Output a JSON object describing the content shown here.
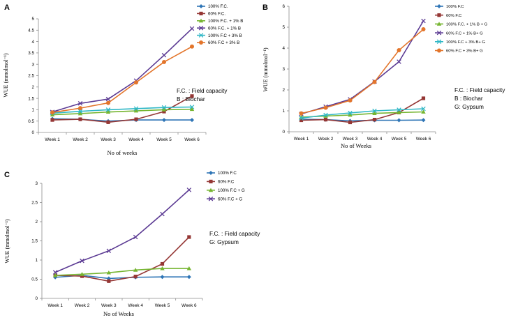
{
  "chart_data": [
    {
      "type": "line",
      "panel_label": "A",
      "categories": [
        "Week 1",
        "Week 2",
        "Week 3",
        "Week 4",
        "Week 5",
        "Week 6"
      ],
      "xlabel": "No of weeks",
      "ylabel": "WUE (mmolmol⁻¹)",
      "ylim": [
        0,
        5
      ],
      "yticks": [
        "0",
        "0.5",
        "1",
        "1.5",
        "2",
        "2.5",
        "3",
        "3.5",
        "4",
        "4.5",
        "5"
      ],
      "legend_position": "top-right",
      "note": [
        "F.C. : Field capacity",
        "B : Biochar"
      ],
      "series": [
        {
          "name": "100% F.C.",
          "color": "#2e75b6",
          "marker": "diamond",
          "values": [
            0.6,
            0.58,
            0.5,
            0.55,
            0.55,
            0.55
          ]
        },
        {
          "name": "60% F.C.",
          "color": "#953735",
          "marker": "square",
          "values": [
            0.55,
            0.58,
            0.45,
            0.58,
            0.92,
            1.6
          ]
        },
        {
          "name": "100% F.C. + 1% B",
          "color": "#76b531",
          "marker": "triangle",
          "values": [
            0.78,
            0.83,
            0.9,
            0.95,
            1.0,
            1.02
          ]
        },
        {
          "name": "60% F.C. + 1% B",
          "color": "#5b3a93",
          "marker": "cross",
          "values": [
            0.9,
            1.28,
            1.47,
            2.28,
            3.4,
            4.57
          ]
        },
        {
          "name": "100% F.C + 3% B",
          "color": "#2fb7c6",
          "marker": "cross",
          "values": [
            0.85,
            0.93,
            1.0,
            1.05,
            1.1,
            1.12
          ]
        },
        {
          "name": "60% F.C + 3% B",
          "color": "#e3752b",
          "marker": "circle",
          "values": [
            0.88,
            1.07,
            1.3,
            2.2,
            3.1,
            3.78
          ]
        }
      ]
    },
    {
      "type": "line",
      "panel_label": "B",
      "categories": [
        "Week 1",
        "Week 2",
        "Week 3",
        "Week 4",
        "Week 5",
        "Week 6"
      ],
      "xlabel": "No of Weeks",
      "ylabel": "WUE (mmolmol⁻¹)",
      "ylim": [
        0,
        6
      ],
      "yticks": [
        "0",
        "1",
        "2",
        "3",
        "4",
        "5",
        "6"
      ],
      "legend_position": "top-right",
      "note": [
        "F.C. : Field capacity",
        "B : Biochar",
        "G: Gypsum"
      ],
      "series": [
        {
          "name": "100% F.C",
          "color": "#2e75b6",
          "marker": "diamond",
          "values": [
            0.6,
            0.58,
            0.52,
            0.55,
            0.55,
            0.56
          ]
        },
        {
          "name": "60% F.C",
          "color": "#953735",
          "marker": "square",
          "values": [
            0.55,
            0.58,
            0.45,
            0.58,
            0.92,
            1.6
          ]
        },
        {
          "name": "100% F.C. + 1% B + G",
          "color": "#76b531",
          "marker": "triangle",
          "values": [
            0.7,
            0.75,
            0.8,
            0.88,
            0.92,
            0.95
          ]
        },
        {
          "name": "60% F.C + 1% B+ G",
          "color": "#5b3a93",
          "marker": "cross",
          "values": [
            0.85,
            1.2,
            1.55,
            2.4,
            3.35,
            5.3
          ]
        },
        {
          "name": "100% F.C + 3% B+ G",
          "color": "#2fb7c6",
          "marker": "cross",
          "values": [
            0.65,
            0.8,
            0.9,
            1.0,
            1.05,
            1.1
          ]
        },
        {
          "name": "60% F.C + 3% B+ G",
          "color": "#e3752b",
          "marker": "circle",
          "values": [
            0.88,
            1.15,
            1.5,
            2.38,
            3.9,
            4.9
          ]
        }
      ]
    },
    {
      "type": "line",
      "panel_label": "C",
      "categories": [
        "Week 1",
        "Week 2",
        "Week 3",
        "Week 4",
        "Week 5",
        "Week 6"
      ],
      "xlabel": "No of Weeks",
      "ylabel": "WUE (mmolmol⁻¹)",
      "ylim": [
        0,
        3
      ],
      "yticks": [
        "0",
        "0.5",
        "1",
        "1.5",
        "2",
        "2.5",
        "3"
      ],
      "legend_position": "top-right",
      "note": [
        "F.C. : Field capacity",
        "G: Gypsum"
      ],
      "series": [
        {
          "name": "100% F.C",
          "color": "#2e75b6",
          "marker": "diamond",
          "values": [
            0.55,
            0.6,
            0.52,
            0.55,
            0.56,
            0.56
          ]
        },
        {
          "name": "60% F.C",
          "color": "#953735",
          "marker": "square",
          "values": [
            0.6,
            0.58,
            0.45,
            0.57,
            0.9,
            1.6
          ]
        },
        {
          "name": "100% F.C + G",
          "color": "#76b531",
          "marker": "triangle",
          "values": [
            0.6,
            0.63,
            0.67,
            0.74,
            0.78,
            0.78
          ]
        },
        {
          "name": "60% F.C + G",
          "color": "#5b3a93",
          "marker": "cross",
          "values": [
            0.68,
            0.98,
            1.24,
            1.6,
            2.2,
            2.83
          ]
        }
      ]
    }
  ]
}
